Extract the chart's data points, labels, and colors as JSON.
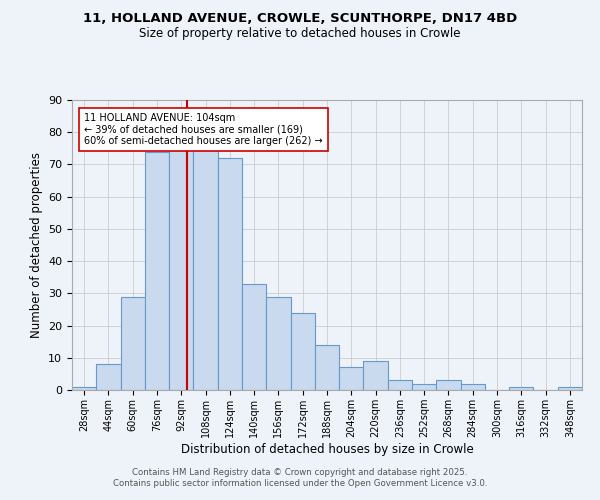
{
  "title_line1": "11, HOLLAND AVENUE, CROWLE, SCUNTHORPE, DN17 4BD",
  "title_line2": "Size of property relative to detached houses in Crowle",
  "xlabel": "Distribution of detached houses by size in Crowle",
  "ylabel": "Number of detached properties",
  "bin_labels": [
    "28sqm",
    "44sqm",
    "60sqm",
    "76sqm",
    "92sqm",
    "108sqm",
    "124sqm",
    "140sqm",
    "156sqm",
    "172sqm",
    "188sqm",
    "204sqm",
    "220sqm",
    "236sqm",
    "252sqm",
    "268sqm",
    "284sqm",
    "300sqm",
    "316sqm",
    "332sqm",
    "348sqm"
  ],
  "bin_edges": [
    28,
    44,
    60,
    76,
    92,
    108,
    124,
    140,
    156,
    172,
    188,
    204,
    220,
    236,
    252,
    268,
    284,
    300,
    316,
    332,
    348
  ],
  "bar_heights": [
    1,
    8,
    29,
    74,
    75,
    75,
    72,
    33,
    29,
    24,
    14,
    7,
    9,
    3,
    2,
    3,
    2,
    0,
    1,
    0,
    1
  ],
  "bar_color": "#c9d9ee",
  "bar_edge_color": "#6699cc",
  "vline_color": "#cc0000",
  "vline_x": 104,
  "annotation_text": "11 HOLLAND AVENUE: 104sqm\n← 39% of detached houses are smaller (169)\n60% of semi-detached houses are larger (262) →",
  "annotation_box_color": "#ffffff",
  "annotation_box_edge": "#cc0000",
  "ylim": [
    0,
    90
  ],
  "yticks": [
    0,
    10,
    20,
    30,
    40,
    50,
    60,
    70,
    80,
    90
  ],
  "grid_color": "#cccccc",
  "bg_color": "#eef2f9",
  "footer_line1": "Contains HM Land Registry data © Crown copyright and database right 2025.",
  "footer_line2": "Contains public sector information licensed under the Open Government Licence v3.0."
}
